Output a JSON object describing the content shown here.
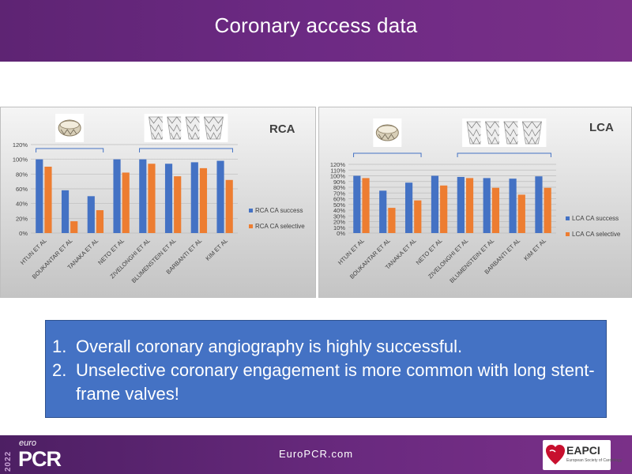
{
  "slide": {
    "title": "Coronary access data",
    "footer_url": "EuroPCR.com",
    "logo": {
      "euro": "euro",
      "pcr": "PCR",
      "year": "2022"
    },
    "society": {
      "name": "EAPCI",
      "sub": "European Society of Cardiology"
    },
    "conclusions": [
      {
        "num": "1.",
        "text": "Overall coronary angiography is highly successful."
      },
      {
        "num": "2.",
        "text": "Unselective coronary engagement is more common with long stent-frame valves!"
      }
    ]
  },
  "colors": {
    "series_success": "#4472c4",
    "series_selective": "#ed7d31",
    "bracket": "#4472c4",
    "header": "#6d2a84",
    "box": "#4472c4"
  },
  "chart_data": [
    {
      "type": "bar",
      "title": "RCA",
      "categories": [
        "HTUN ET AL",
        "BOUKANTAR ET AL",
        "TANAKA ET AL",
        "NETO ET AL",
        "ZIVELONGHI ET AL",
        "BLUMENSTEIN ET AL",
        "BARBANTI ET AL",
        "KIM ET AL"
      ],
      "series": [
        {
          "name": "RCA CA success",
          "values": [
            100,
            58,
            50,
            100,
            100,
            94,
            96,
            98
          ]
        },
        {
          "name": "RCA CA selective",
          "values": [
            90,
            16,
            31,
            82,
            94,
            77,
            88,
            72
          ]
        }
      ],
      "ylim": [
        0,
        120
      ],
      "yticks": [
        "0%",
        "20%",
        "40%",
        "60%",
        "80%",
        "100%",
        "120%"
      ],
      "grid": true,
      "legend": "right",
      "valve_groups": [
        {
          "icons": [
            "short-frame-valve-icon"
          ],
          "span": [
            0,
            2
          ]
        },
        {
          "icons": [
            "long-frame-valve-icon",
            "long-frame-valve-icon",
            "long-frame-valve-icon",
            "long-frame-valve-icon"
          ],
          "span": [
            4,
            7
          ]
        }
      ]
    },
    {
      "type": "bar",
      "title": "LCA",
      "categories": [
        "HTUN ET AL",
        "BOUKANTAR ET AL",
        "TANAKA ET AL",
        "NETO ET AL",
        "ZIVELONGHI ET AL",
        "BLUMENSTEIN ET AL",
        "BARBANTI ET AL",
        "KIM ET AL"
      ],
      "series": [
        {
          "name": "LCA CA success",
          "values": [
            100,
            74,
            88,
            100,
            98,
            96,
            95,
            99
          ]
        },
        {
          "name": "LCA CA selective",
          "values": [
            96,
            44,
            57,
            83,
            96,
            79,
            67,
            79
          ]
        }
      ],
      "ylim": [
        0,
        120
      ],
      "yticks": [
        "0%",
        "10%",
        "20%",
        "30%",
        "40%",
        "50%",
        "60%",
        "70%",
        "80%",
        "90%",
        "100%",
        "110%",
        "120%"
      ],
      "grid": true,
      "legend": "right",
      "valve_groups": [
        {
          "icons": [
            "short-frame-valve-icon"
          ],
          "span": [
            0,
            2
          ]
        },
        {
          "icons": [
            "long-frame-valve-icon",
            "long-frame-valve-icon",
            "long-frame-valve-icon",
            "long-frame-valve-icon"
          ],
          "span": [
            4,
            7
          ]
        }
      ]
    }
  ]
}
